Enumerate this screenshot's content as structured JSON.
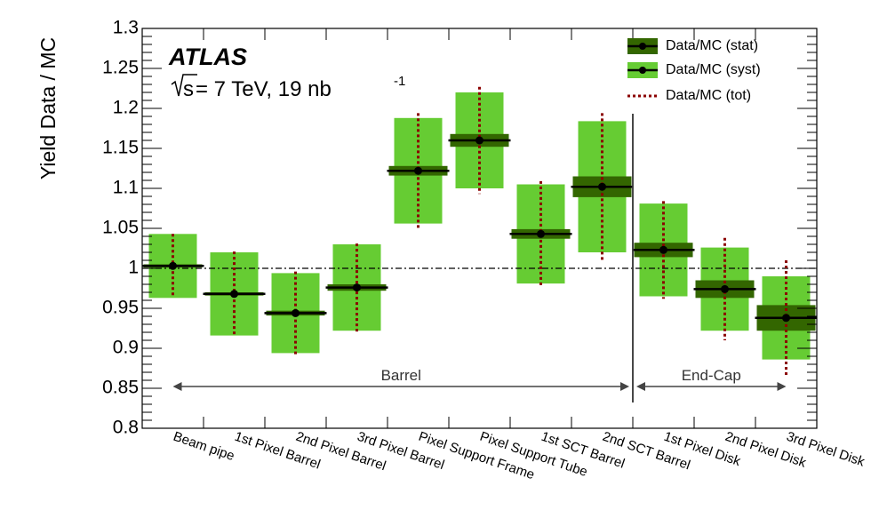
{
  "chart_data": {
    "type": "scatter",
    "ylabel": "Yield Data / MC",
    "ylim": [
      0.8,
      1.3
    ],
    "yticks": [
      "0.8",
      "0.85",
      "0.9",
      "0.95",
      "1",
      "1.05",
      "1.1",
      "1.15",
      "1.2",
      "1.25",
      "1.3"
    ],
    "categories": [
      "Beam pipe",
      "1st Pixel Barrel",
      "2nd Pixel Barrel",
      "3rd Pixel Barrel",
      "Pixel Support Frame",
      "Pixel Support Tube",
      "1st SCT Barrel",
      "2nd SCT Barrel",
      "1st Pixel Disk",
      "2nd Pixel Disk",
      "3rd Pixel Disk"
    ],
    "values": [
      1.003,
      0.968,
      0.944,
      0.976,
      1.122,
      1.16,
      1.043,
      1.102,
      1.023,
      0.974,
      0.938
    ],
    "stat_err": [
      0.002,
      0.002,
      0.003,
      0.004,
      0.006,
      0.008,
      0.006,
      0.013,
      0.009,
      0.011,
      0.016
    ],
    "syst_err": [
      0.04,
      0.052,
      0.05,
      0.054,
      0.066,
      0.06,
      0.062,
      0.082,
      0.058,
      0.052,
      0.052
    ],
    "tot_err": [
      0.04,
      0.053,
      0.052,
      0.055,
      0.072,
      0.067,
      0.066,
      0.092,
      0.061,
      0.064,
      0.072
    ],
    "reference_line": 1.0,
    "regions": [
      {
        "label": "Barrel",
        "from": 0,
        "to": 7
      },
      {
        "label": "End-Cap",
        "from": 8,
        "to": 10
      }
    ],
    "legend": [
      {
        "label": "Data/MC (stat)",
        "style": "stat"
      },
      {
        "label": "Data/MC (syst)",
        "style": "syst"
      },
      {
        "label": "Data/MC (tot)",
        "style": "tot"
      }
    ],
    "legend_position": "top-right",
    "annotations": {
      "experiment": "ATLAS",
      "energy_prefix": "s",
      "energy_text": " = 7 TeV, 19 nb",
      "energy_sup": "-1"
    },
    "colors": {
      "stat": "#336600",
      "syst": "#66cc33",
      "tot": "#8b0000",
      "marker": "#000000"
    }
  }
}
